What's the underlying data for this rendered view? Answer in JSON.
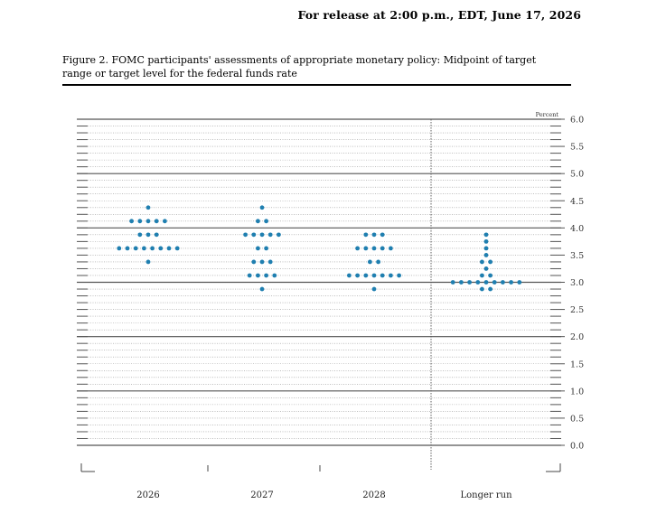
{
  "header": {
    "release_text": "For release at 2:00 p.m., EDT, June 17, 2026"
  },
  "figure": {
    "title": "Figure 2. FOMC participants' assessments of appropriate monetary policy: Midpoint of target range or target level for the federal funds rate"
  },
  "colors": {
    "dot": "#1f7fb0",
    "major_grid": "#555555",
    "minor_grid": "#999999"
  },
  "chart_data": {
    "type": "scatter",
    "unit_label": "Percent",
    "ylim": [
      0,
      6
    ],
    "yticks": [
      "6.0",
      "5.5",
      "5.0",
      "4.5",
      "4.0",
      "3.5",
      "3.0",
      "2.5",
      "2.0",
      "1.5",
      "1.0",
      "0.5",
      "0.0"
    ],
    "grid": true,
    "categories": [
      "2026",
      "2027",
      "2028",
      "Longer run"
    ],
    "series": [
      {
        "category": "2026",
        "points": [
          {
            "y": 4.375,
            "count": 1
          },
          {
            "y": 4.125,
            "count": 5
          },
          {
            "y": 3.875,
            "count": 3
          },
          {
            "y": 3.625,
            "count": 8
          },
          {
            "y": 3.375,
            "count": 1
          }
        ]
      },
      {
        "category": "2027",
        "points": [
          {
            "y": 4.375,
            "count": 1
          },
          {
            "y": 4.125,
            "count": 2
          },
          {
            "y": 3.875,
            "count": 5
          },
          {
            "y": 3.625,
            "count": 2
          },
          {
            "y": 3.375,
            "count": 3
          },
          {
            "y": 3.125,
            "count": 4
          },
          {
            "y": 2.875,
            "count": 1
          }
        ]
      },
      {
        "category": "2028",
        "points": [
          {
            "y": 3.875,
            "count": 3
          },
          {
            "y": 3.625,
            "count": 5
          },
          {
            "y": 3.375,
            "count": 2
          },
          {
            "y": 3.125,
            "count": 7
          },
          {
            "y": 2.875,
            "count": 1
          }
        ]
      },
      {
        "category": "Longer run",
        "points": [
          {
            "y": 3.875,
            "count": 1
          },
          {
            "y": 3.75,
            "count": 1
          },
          {
            "y": 3.625,
            "count": 1
          },
          {
            "y": 3.5,
            "count": 1
          },
          {
            "y": 3.375,
            "count": 2
          },
          {
            "y": 3.25,
            "count": 1
          },
          {
            "y": 3.125,
            "count": 2
          },
          {
            "y": 3.0,
            "count": 9
          },
          {
            "y": 2.875,
            "count": 2
          }
        ]
      }
    ]
  }
}
